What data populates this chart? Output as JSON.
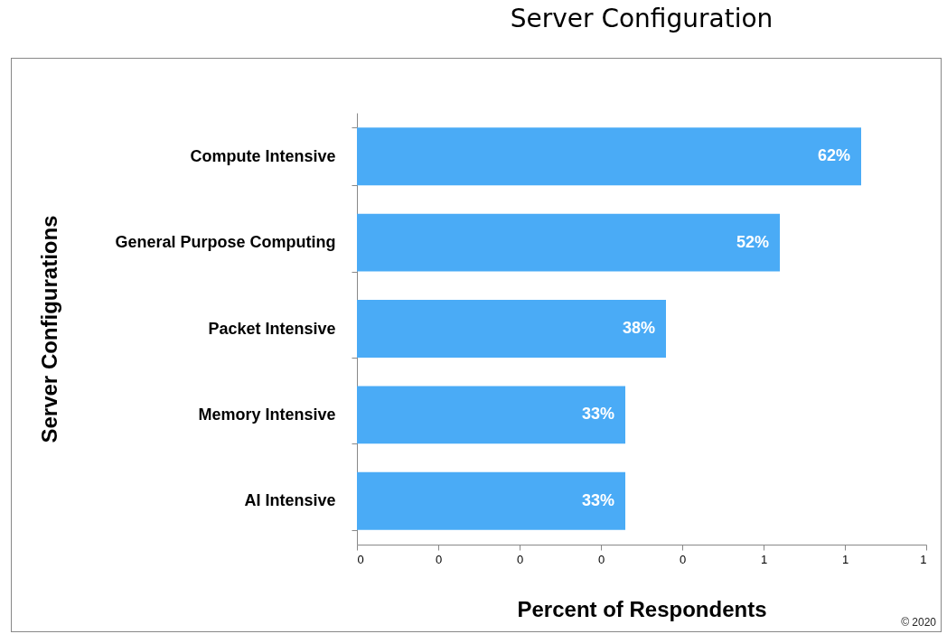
{
  "chart_data": {
    "type": "bar",
    "orientation": "horizontal",
    "title": "Server Configuration",
    "xlabel": "Percent of Respondents",
    "ylabel": "Server Configurations",
    "categories": [
      "Compute Intensive",
      "General Purpose Computing",
      "Packet Intensive",
      "Memory Intensive",
      "AI Intensive"
    ],
    "values": [
      0.62,
      0.52,
      0.38,
      0.33,
      0.33
    ],
    "value_labels": [
      "62%",
      "52%",
      "38%",
      "33%",
      "33%"
    ],
    "color": "#4aabf6",
    "xlim": [
      0,
      0.7
    ],
    "xticks": [
      0,
      {
        "value": 0.1,
        "label": "0"
      },
      {
        "value": 0.2,
        "label": "0"
      },
      {
        "value": 0.3,
        "label": "0"
      },
      {
        "value": 0.4,
        "label": "0"
      },
      {
        "value": 0.5,
        "label": "1"
      },
      {
        "value": 0.6,
        "label": "1"
      },
      {
        "value": 0.7,
        "label": "1"
      }
    ],
    "annotations": [
      "© 2020"
    ]
  }
}
